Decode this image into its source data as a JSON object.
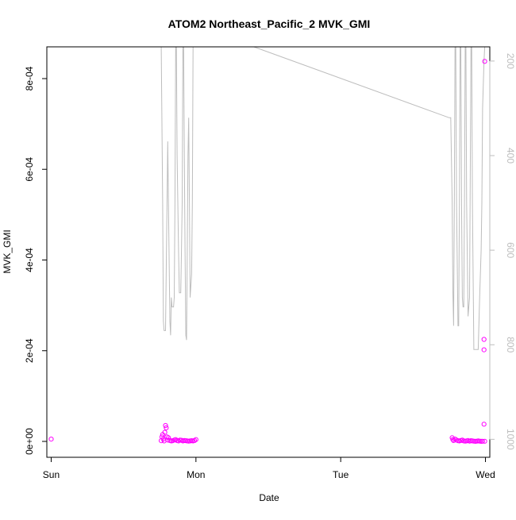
{
  "chart_data": {
    "type": "scatter",
    "title": "ATOM2 Northeast_Pacific_2 MVK_GMI",
    "xlabel": "Date",
    "ylabel": "MVK_GMI",
    "x_unit": "days from Sun 00:00",
    "xlim": [
      -0.03,
      3.03
    ],
    "ylim": [
      -3.5e-05,
      0.00087
    ],
    "x_ticks": [
      {
        "label": "Sun",
        "value": 0
      },
      {
        "label": "Mon",
        "value": 1
      },
      {
        "label": "Tue",
        "value": 2
      },
      {
        "label": "Wed",
        "value": 3
      }
    ],
    "y_ticks": [
      {
        "label": "0e+00",
        "value": 0
      },
      {
        "label": "2e-04",
        "value": 0.0002
      },
      {
        "label": "4e-04",
        "value": 0.0004
      },
      {
        "label": "6e-04",
        "value": 0.0006
      },
      {
        "label": "8e-04",
        "value": 0.0008
      }
    ],
    "y2lim": [
      1038,
      170
    ],
    "y2_reversed": true,
    "y2_ticks": [
      {
        "label": "200",
        "value": 200
      },
      {
        "label": "400",
        "value": 400
      },
      {
        "label": "600",
        "value": 600
      },
      {
        "label": "800",
        "value": 800
      },
      {
        "label": "1000",
        "value": 1000
      }
    ],
    "series": [
      {
        "axis": "left",
        "kind": "points",
        "color": "#ff00ff",
        "x": [
          0.0,
          0.76,
          0.765,
          0.77,
          0.775,
          0.78,
          0.785,
          0.79,
          0.795,
          0.8,
          0.805,
          0.81,
          0.82,
          0.83,
          0.84,
          0.85,
          0.86,
          0.87,
          0.88,
          0.89,
          0.9,
          0.91,
          0.92,
          0.93,
          0.94,
          0.95,
          0.96,
          0.97,
          0.98,
          0.99,
          1.0,
          2.77,
          2.775,
          2.78,
          2.79,
          2.8,
          2.81,
          2.82,
          2.83,
          2.84,
          2.85,
          2.86,
          2.87,
          2.88,
          2.89,
          2.9,
          2.91,
          2.92,
          2.93,
          2.94,
          2.95,
          2.96,
          2.97,
          2.98,
          2.99,
          2.99,
          2.99,
          2.995,
          2.995
        ],
        "y": [
          5e-06,
          1.5e-06,
          1e-05,
          1.5e-05,
          5e-06,
          1e-06,
          2e-05,
          3.5e-05,
          3e-05,
          1e-05,
          3e-06,
          8e-06,
          2e-06,
          1e-06,
          1.5e-06,
          3e-06,
          4e-06,
          2e-06,
          1e-06,
          3e-06,
          2.5e-06,
          1e-06,
          2e-06,
          1.5e-06,
          1e-06,
          5e-07,
          1e-06,
          1.5e-06,
          1e-06,
          2e-06,
          4e-06,
          8e-06,
          4e-06,
          2e-06,
          5e-06,
          3e-06,
          1.5e-06,
          1e-06,
          2e-06,
          3e-06,
          1e-06,
          5e-07,
          1e-06,
          2e-06,
          5e-07,
          1.5e-06,
          1e-06,
          5e-07,
          2e-07,
          5e-07,
          1e-06,
          5e-07,
          2e-07,
          3e-07,
          3.8e-05,
          0.000202,
          0.000225,
          0.000838,
          3e-07
        ]
      },
      {
        "axis": "right",
        "kind": "line",
        "color": "#bdbdbd",
        "x": [
          0.75,
          0.76,
          0.77,
          0.775,
          0.78,
          0.79,
          0.8,
          0.805,
          0.81,
          0.82,
          0.825,
          0.83,
          0.835,
          0.84,
          0.845,
          0.85,
          0.855,
          0.86,
          0.865,
          0.87,
          0.88,
          0.885,
          0.89,
          0.895,
          0.9,
          0.905,
          0.91,
          0.915,
          0.92,
          0.925,
          0.93,
          0.935,
          0.94,
          0.945,
          0.95,
          0.955,
          0.96,
          0.97,
          0.975,
          0.98,
          0.99,
          1.4,
          2.75,
          2.76,
          2.77,
          2.775,
          2.78,
          2.785,
          2.79,
          2.795,
          2.8,
          2.81,
          2.815,
          2.82,
          2.825,
          2.83,
          2.835,
          2.84,
          2.845,
          2.85,
          2.855,
          2.86,
          2.865,
          2.87,
          2.88,
          2.89,
          2.9,
          2.905,
          2.91,
          2.92,
          2.93,
          2.94,
          2.95,
          2.96,
          2.97,
          2.975,
          2.98,
          2.99,
          2.995
        ],
        "y": [
          170,
          170,
          500,
          750,
          770,
          770,
          500,
          370,
          500,
          750,
          780,
          700,
          720,
          720,
          720,
          700,
          500,
          170,
          170,
          400,
          600,
          690,
          690,
          690,
          600,
          500,
          170,
          170,
          400,
          600,
          780,
          790,
          600,
          400,
          320,
          500,
          700,
          650,
          500,
          170,
          170,
          170,
          320,
          320,
          500,
          690,
          760,
          500,
          170,
          170,
          500,
          760,
          760,
          500,
          170,
          170,
          500,
          700,
          720,
          720,
          500,
          170,
          170,
          500,
          740,
          700,
          170,
          170,
          500,
          810,
          810,
          810,
          810,
          700,
          600,
          500,
          300,
          200,
          170
        ]
      }
    ]
  }
}
